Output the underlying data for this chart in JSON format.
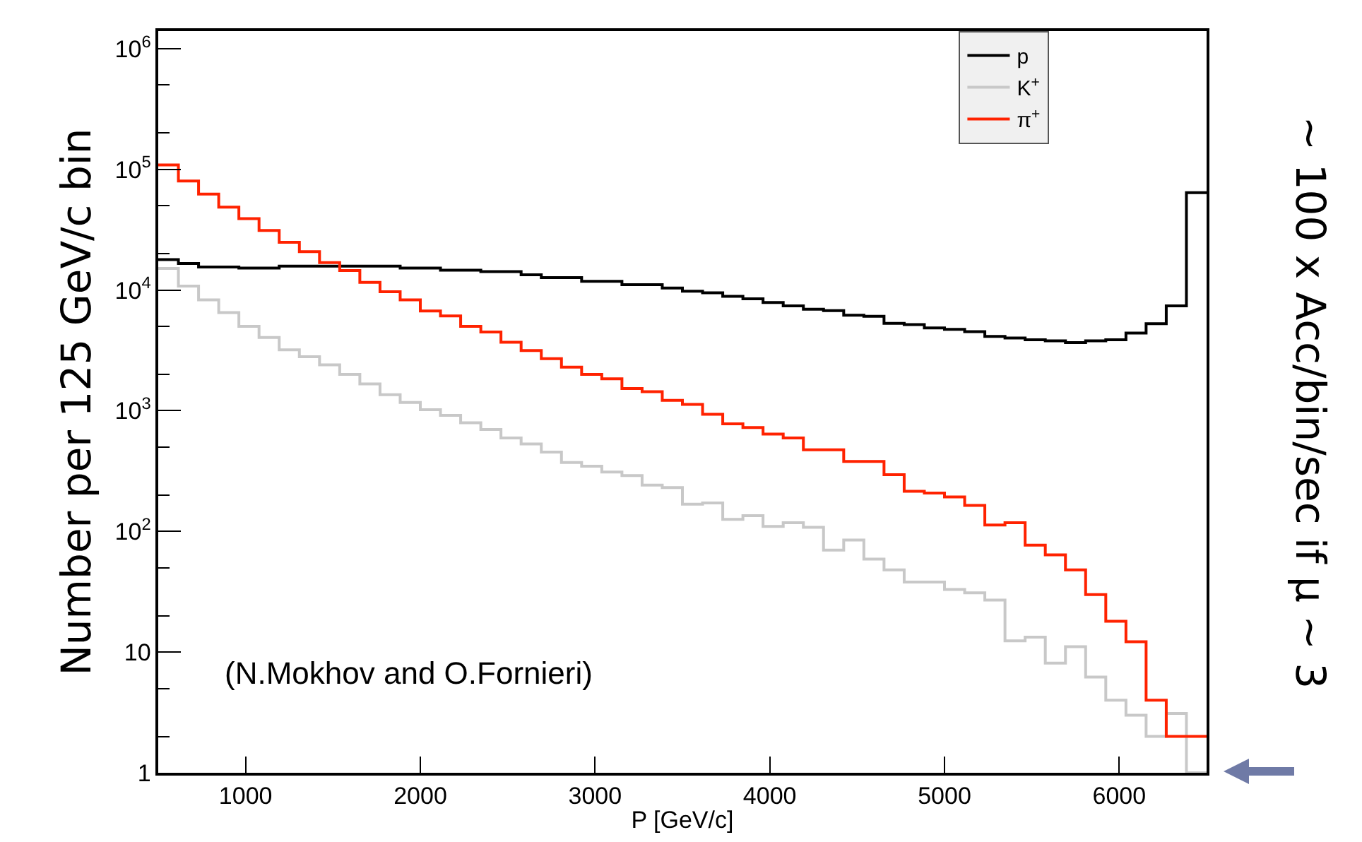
{
  "chart_data": {
    "type": "histogram",
    "xlabel": "P [GeV/c]",
    "ylabel": "Number per 125 GeV/c bin",
    "y2label": "~ 100 x Acc/bin/sec if μ ~ 3",
    "annotations": [
      "(N.Mokhov and O.Fornieri)"
    ],
    "bins": [
      500,
      615.4,
      730.8,
      846.2,
      961.5,
      1076.9,
      1192.3,
      1307.7,
      1423.1,
      1538.5,
      1653.8,
      1769.2,
      1884.6,
      2000,
      2115.4,
      2230.8,
      2346.2,
      2461.5,
      2576.9,
      2692.3,
      2807.7,
      2923.1,
      3038.5,
      3153.8,
      3269.2,
      3384.6,
      3500,
      3615.4,
      3730.8,
      3846.2,
      3961.5,
      4076.9,
      4192.3,
      4307.7,
      4423.1,
      4538.5,
      4653.8,
      4769.2,
      4884.6,
      5000,
      5115.4,
      5230.8,
      5346.2,
      5461.5,
      5576.9,
      5692.3,
      5807.7,
      5923.1,
      6038.5,
      6153.8,
      6269.2,
      6384.6,
      6500
    ],
    "series": [
      {
        "name": "p",
        "color": "#000000",
        "values": [
          17900,
          16600,
          15500,
          15500,
          15200,
          15200,
          15800,
          15800,
          15800,
          15800,
          15800,
          15800,
          15200,
          15200,
          14600,
          14600,
          14200,
          14200,
          13400,
          12700,
          12700,
          11800,
          11800,
          11100,
          11100,
          10400,
          9800,
          9500,
          8870,
          8480,
          7890,
          7400,
          6950,
          6760,
          6180,
          6070,
          5300,
          5170,
          4850,
          4720,
          4520,
          4130,
          4010,
          3870,
          3800,
          3670,
          3800,
          3870,
          4400,
          5260,
          7400,
          64100
        ]
      },
      {
        "name": "K$^{+}$",
        "color": "#c8c8c8",
        "values": [
          15100,
          10800,
          8300,
          6500,
          5000,
          4050,
          3200,
          2800,
          2400,
          2000,
          1670,
          1360,
          1170,
          1020,
          917,
          794,
          700,
          596,
          530,
          454,
          373,
          347,
          311,
          290,
          242,
          231,
          168,
          172,
          126,
          135,
          110,
          118,
          108,
          70,
          85,
          59,
          48,
          38,
          38,
          33,
          31,
          27,
          12.4,
          13.3,
          8.1,
          11.1,
          6.2,
          4,
          3,
          2,
          3.1,
          1
        ]
      },
      {
        "name": "π$^{+}$",
        "color": "#ff2200",
        "values": [
          109000,
          80000,
          62500,
          48600,
          39100,
          31200,
          24900,
          20800,
          16900,
          14500,
          11600,
          9700,
          8300,
          6700,
          6100,
          5000,
          4500,
          3700,
          3150,
          2700,
          2300,
          2000,
          1840,
          1530,
          1440,
          1220,
          1130,
          933,
          780,
          726,
          640,
          596,
          475,
          475,
          380,
          380,
          295,
          215,
          208,
          193,
          164,
          113,
          118,
          77,
          64,
          48,
          30,
          18,
          12.2,
          4,
          2,
          2
        ]
      }
    ],
    "log": "y",
    "xlim": [
      500,
      6500
    ],
    "ylim": [
      1,
      1400000
    ],
    "xticks": [
      1000,
      2000,
      3000,
      4000,
      5000,
      6000
    ],
    "yticks": [
      1,
      10,
      {
        "value": 100,
        "label": "10$^{2}$"
      },
      {
        "value": 1000,
        "label": "10$^{3}$"
      },
      {
        "value": 10000,
        "label": "10$^{4}$"
      },
      {
        "value": 100000,
        "label": "10$^{5}$"
      },
      {
        "value": 1000000,
        "label": "10$^{6}$"
      }
    ],
    "grid": false,
    "legend": "top right",
    "line_style": "solid",
    "marker": "none"
  }
}
